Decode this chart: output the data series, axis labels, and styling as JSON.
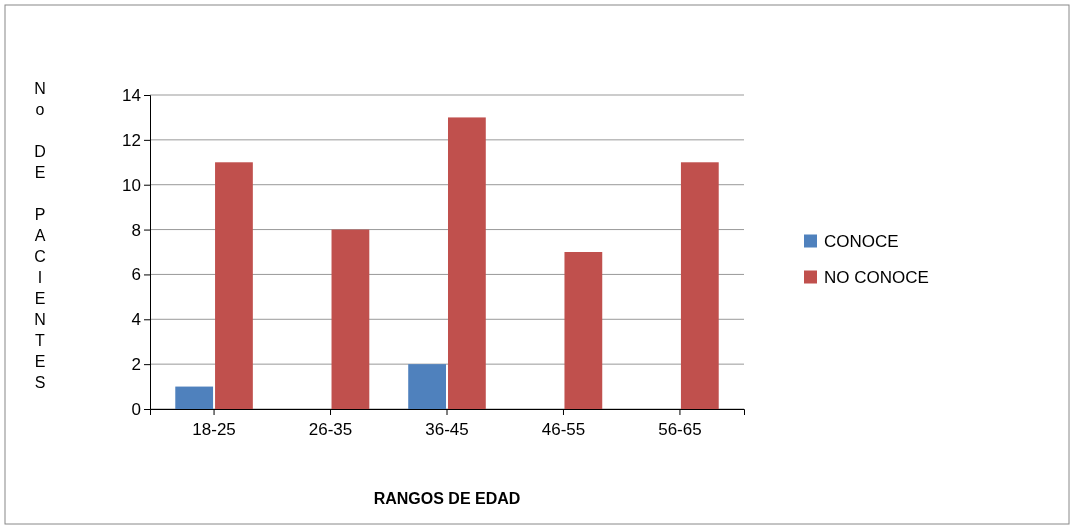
{
  "chart_data": {
    "type": "bar",
    "xlabel": "RANGOS DE EDAD",
    "ylabel": "No DE PACIENTES",
    "categories": [
      "18-25",
      "26-35",
      "36-45",
      "46-55",
      "56-65"
    ],
    "series": [
      {
        "name": "CONOCE",
        "color": "#4f81bd",
        "values": [
          1,
          0,
          2,
          0,
          0
        ]
      },
      {
        "name": "NO CONOCE",
        "color": "#c0504d",
        "values": [
          11,
          8,
          13,
          7,
          11
        ]
      }
    ],
    "ylim": [
      0,
      14
    ],
    "yticks": [
      0,
      2,
      4,
      6,
      8,
      10,
      12,
      14
    ],
    "grid": "y",
    "legend": "right"
  }
}
